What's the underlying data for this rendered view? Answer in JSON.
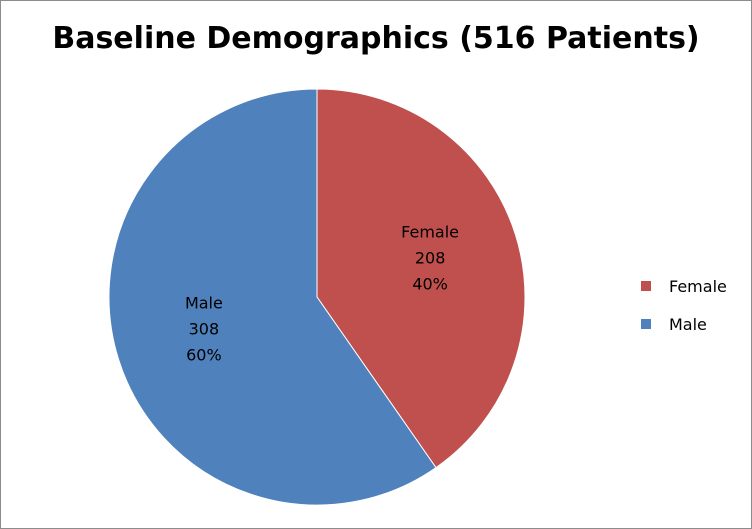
{
  "chart_data": {
    "type": "pie",
    "title": "Baseline Demographics (516 Patients)",
    "slices": [
      {
        "label": "Female",
        "value": 208,
        "percent_label": "40%",
        "color": "#C0504D"
      },
      {
        "label": "Male",
        "value": 308,
        "percent_label": "60%",
        "color": "#4F81BD"
      }
    ],
    "start_angle_deg": 0,
    "direction": "clockwise",
    "legend": {
      "placement": "right",
      "entries": [
        "Female",
        "Male"
      ]
    }
  }
}
